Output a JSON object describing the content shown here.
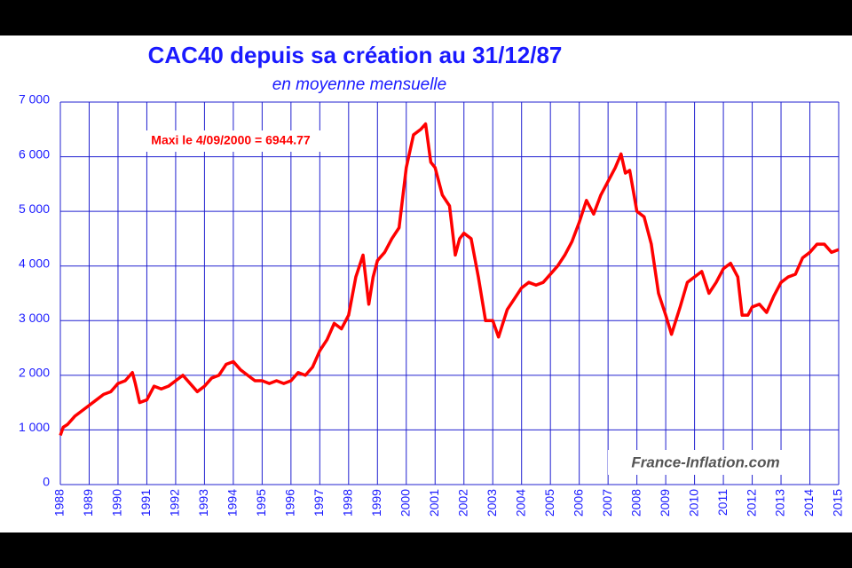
{
  "chart_data": {
    "type": "line",
    "title": "CAC40 depuis sa création au 31/12/87",
    "subtitle": "en moyenne mensuelle",
    "annotation": "Maxi le 4/09/2000 = 6944.77",
    "watermark": "France-Inflation.com",
    "x": [
      1988.0,
      1988.1,
      1988.25,
      1988.5,
      1988.75,
      1989.0,
      1989.25,
      1989.5,
      1989.75,
      1990.0,
      1990.25,
      1990.5,
      1990.6,
      1990.75,
      1991.0,
      1991.25,
      1991.5,
      1991.75,
      1992.0,
      1992.25,
      1992.5,
      1992.75,
      1993.0,
      1993.25,
      1993.5,
      1993.75,
      1994.0,
      1994.25,
      1994.5,
      1994.75,
      1995.0,
      1995.25,
      1995.5,
      1995.75,
      1996.0,
      1996.25,
      1996.5,
      1996.75,
      1997.0,
      1997.25,
      1997.5,
      1997.75,
      1998.0,
      1998.25,
      1998.5,
      1998.7,
      1998.85,
      1999.0,
      1999.25,
      1999.5,
      1999.75,
      2000.0,
      2000.25,
      2000.5,
      2000.67,
      2000.85,
      2001.0,
      2001.25,
      2001.5,
      2001.7,
      2001.85,
      2002.0,
      2002.25,
      2002.5,
      2002.75,
      2003.0,
      2003.2,
      2003.5,
      2003.75,
      2004.0,
      2004.25,
      2004.5,
      2004.75,
      2005.0,
      2005.25,
      2005.5,
      2005.75,
      2006.0,
      2006.25,
      2006.5,
      2006.75,
      2007.0,
      2007.25,
      2007.45,
      2007.6,
      2007.75,
      2008.0,
      2008.25,
      2008.5,
      2008.75,
      2009.0,
      2009.2,
      2009.5,
      2009.75,
      2010.0,
      2010.25,
      2010.5,
      2010.75,
      2011.0,
      2011.25,
      2011.5,
      2011.65,
      2011.85,
      2012.0,
      2012.25,
      2012.5,
      2012.75,
      2013.0,
      2013.25,
      2013.5,
      2013.75,
      2014.0,
      2014.25,
      2014.5,
      2014.75,
      2015.0
    ],
    "series": [
      {
        "name": "CAC40",
        "color": "#ff0000",
        "values": [
          900,
          1050,
          1100,
          1250,
          1350,
          1450,
          1550,
          1650,
          1700,
          1850,
          1900,
          2050,
          1850,
          1500,
          1550,
          1800,
          1750,
          1800,
          1900,
          2000,
          1850,
          1700,
          1800,
          1950,
          2000,
          2200,
          2250,
          2100,
          2000,
          1900,
          1900,
          1850,
          1900,
          1850,
          1900,
          2050,
          2000,
          2150,
          2450,
          2650,
          2950,
          2850,
          3100,
          3800,
          4200,
          3300,
          3800,
          4100,
          4250,
          4500,
          4700,
          5800,
          6400,
          6500,
          6600,
          5900,
          5800,
          5300,
          5100,
          4200,
          4500,
          4600,
          4500,
          3800,
          3000,
          3000,
          2700,
          3200,
          3400,
          3600,
          3700,
          3650,
          3700,
          3850,
          4000,
          4200,
          4450,
          4800,
          5200,
          4950,
          5300,
          5550,
          5800,
          6050,
          5700,
          5750,
          5000,
          4900,
          4400,
          3500,
          3100,
          2750,
          3250,
          3700,
          3800,
          3900,
          3500,
          3700,
          3950,
          4050,
          3800,
          3100,
          3100,
          3250,
          3300,
          3150,
          3450,
          3700,
          3800,
          3850,
          4150,
          4250,
          4400,
          4400,
          4250,
          4300
        ]
      }
    ],
    "xlim": [
      1988,
      2015
    ],
    "xticks": [
      1988,
      1989,
      1990,
      1991,
      1992,
      1993,
      1994,
      1995,
      1996,
      1997,
      1998,
      1999,
      2000,
      2001,
      2002,
      2003,
      2004,
      2005,
      2006,
      2007,
      2008,
      2009,
      2010,
      2011,
      2012,
      2013,
      2014,
      2015
    ],
    "ylim": [
      0,
      7000
    ],
    "yticks": [
      0,
      {
        "value": 1000,
        "label": "1 000"
      },
      {
        "value": 2000,
        "label": "2 000"
      },
      {
        "value": 3000,
        "label": "3 000"
      },
      {
        "value": 4000,
        "label": "4 000"
      },
      {
        "value": 5000,
        "label": "5 000"
      },
      {
        "value": 6000,
        "label": "6 000"
      },
      {
        "value": 7000,
        "label": "7 000"
      }
    ],
    "grid": true
  }
}
